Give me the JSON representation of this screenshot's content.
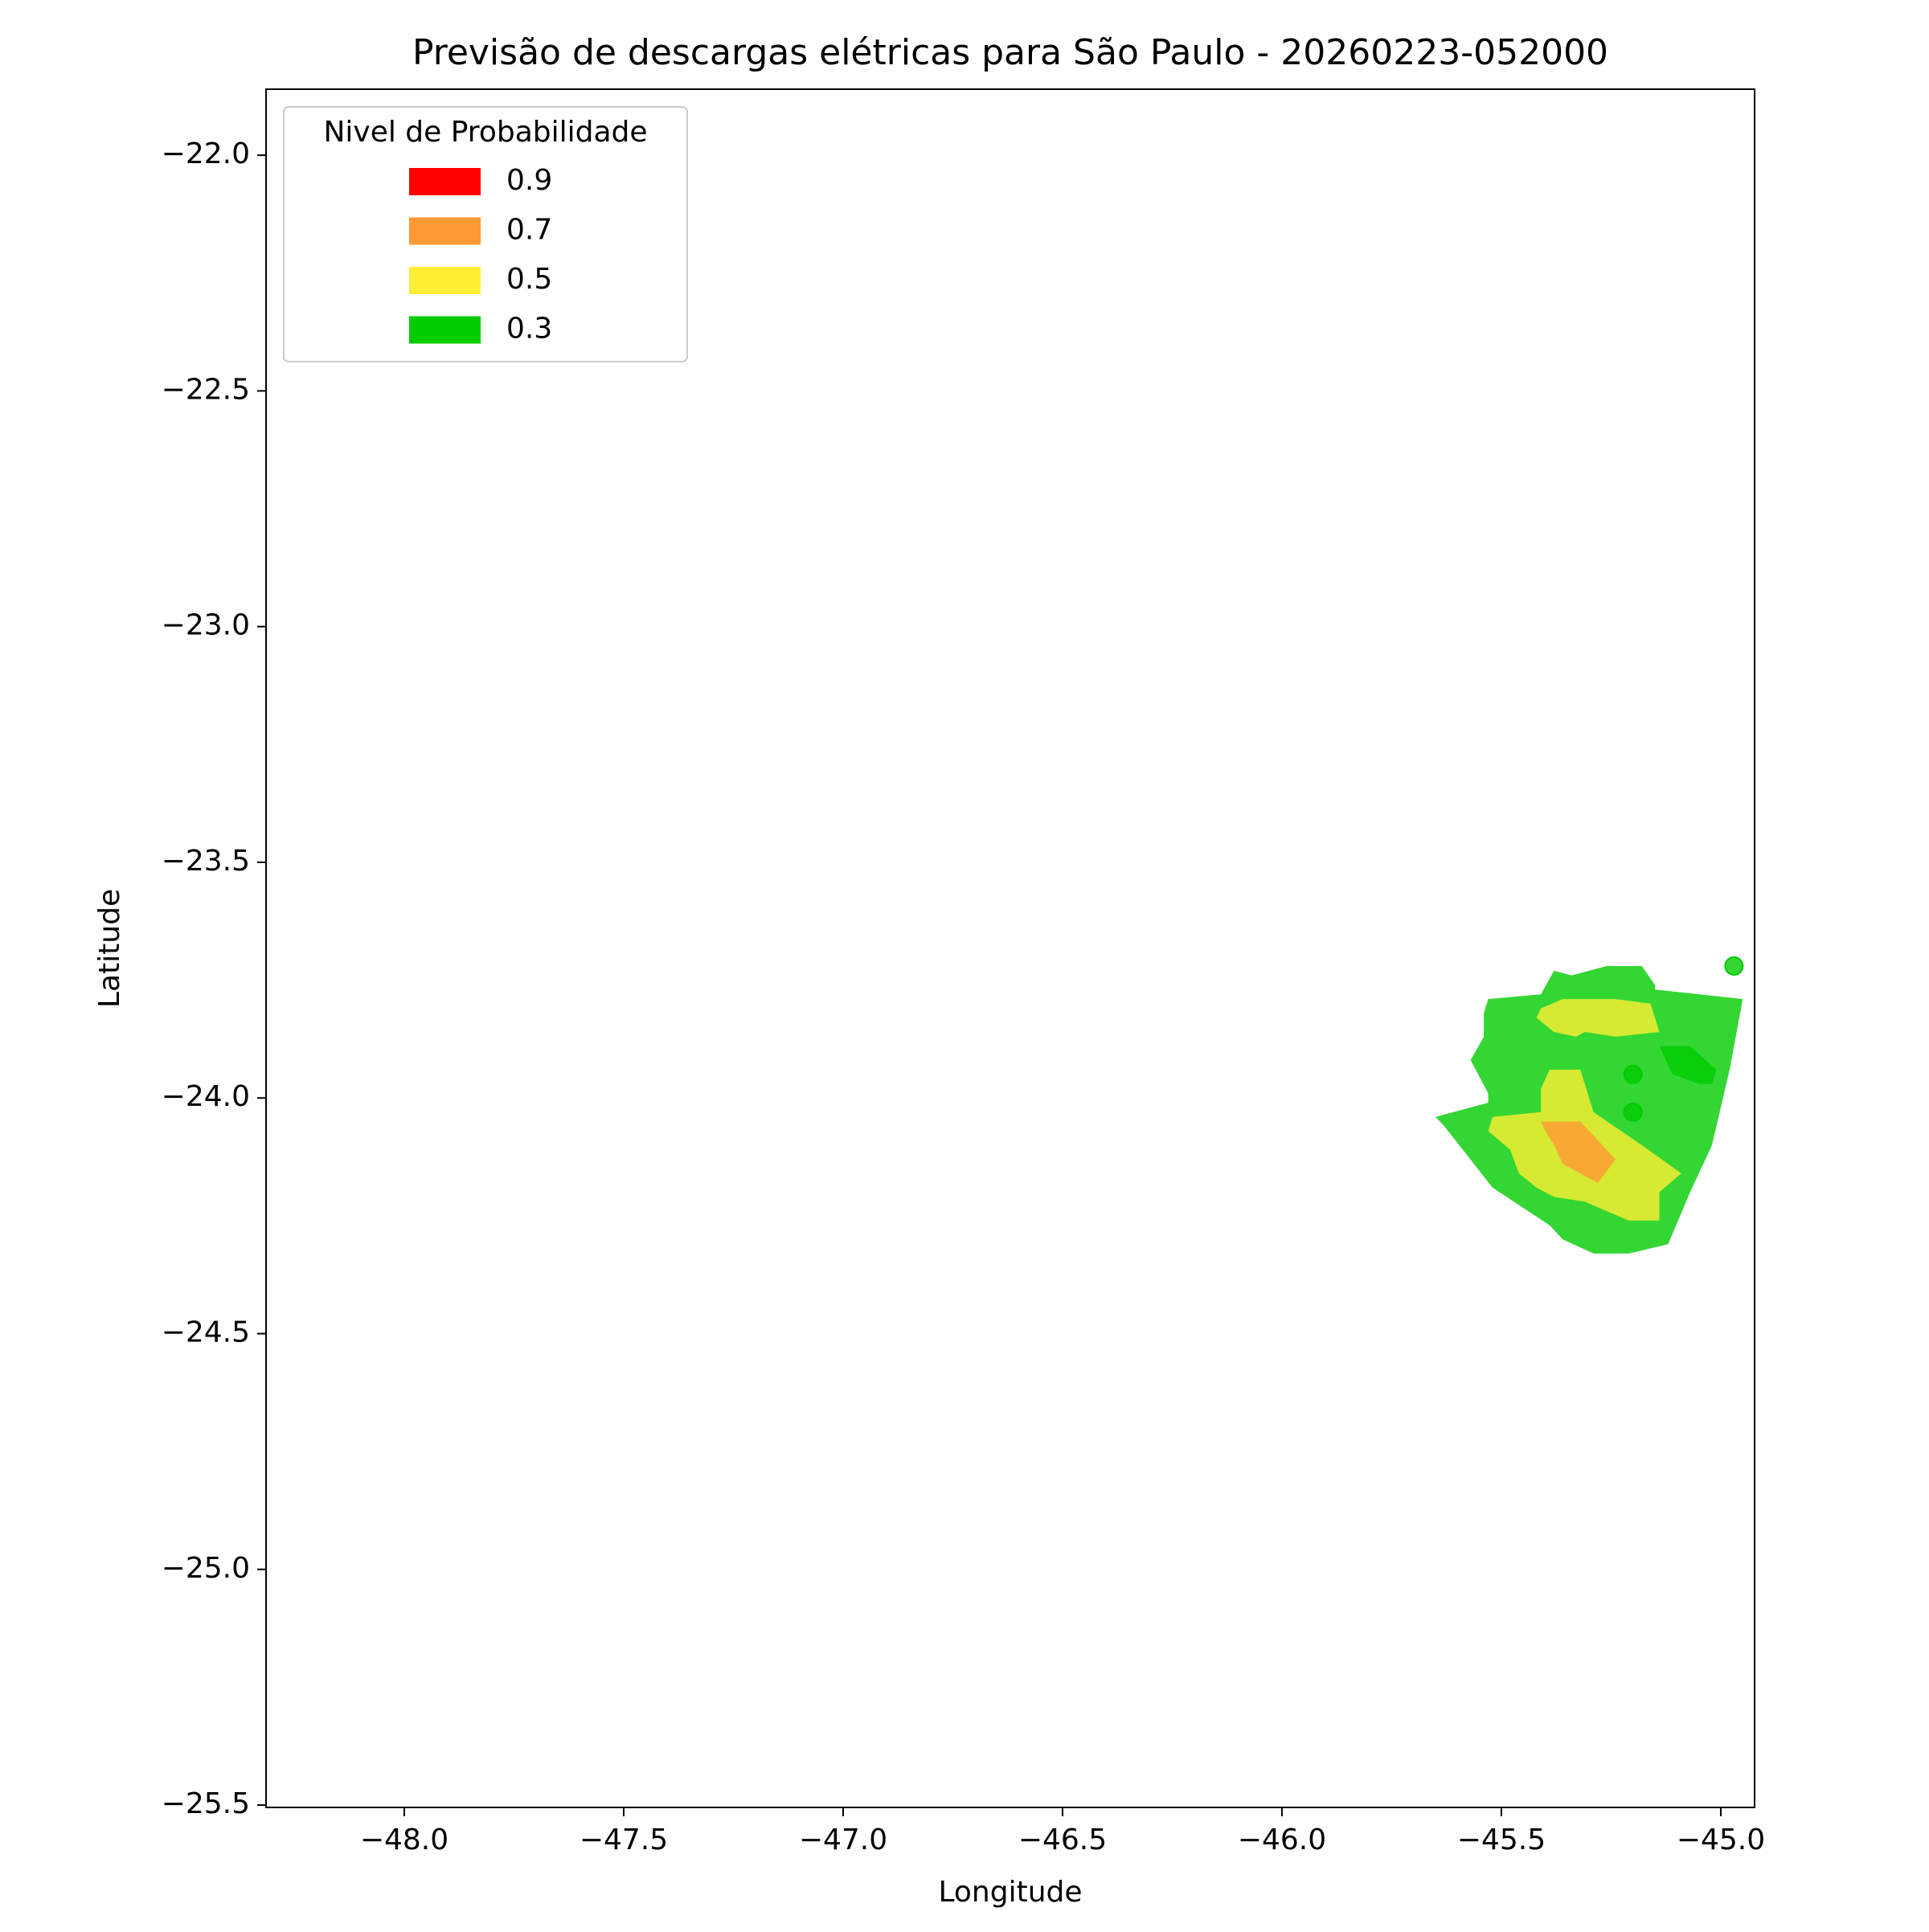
{
  "chart_data": {
    "type": "contour-map",
    "title": "Previsão de descargas elétricas para São Paulo - 20260223-052000",
    "x_label": "Longitude",
    "y_label": "Latitude",
    "xlim": [
      -48.315,
      -44.923
    ],
    "ylim": [
      -25.505,
      -21.86
    ],
    "xticks": [
      {
        "value": -48.0,
        "label": "−48.0"
      },
      {
        "value": -47.5,
        "label": "−47.5"
      },
      {
        "value": -47.0,
        "label": "−47.0"
      },
      {
        "value": -46.5,
        "label": "−46.5"
      },
      {
        "value": -46.0,
        "label": "−46.0"
      },
      {
        "value": -45.5,
        "label": "−45.5"
      },
      {
        "value": -45.0,
        "label": "−45.0"
      }
    ],
    "yticks": [
      {
        "value": -22.0,
        "label": "−22.0"
      },
      {
        "value": -22.5,
        "label": "−22.5"
      },
      {
        "value": -23.0,
        "label": "−23.0"
      },
      {
        "value": -23.5,
        "label": "−23.5"
      },
      {
        "value": -24.0,
        "label": "−24.0"
      },
      {
        "value": -24.5,
        "label": "−24.5"
      },
      {
        "value": -25.0,
        "label": "−25.0"
      },
      {
        "value": -25.5,
        "label": "−25.5"
      }
    ],
    "legend": {
      "title": "Nivel de Probabilidade",
      "loc": "upper left",
      "entries": [
        {
          "label": "0.9",
          "color": "#ff0000"
        },
        {
          "label": "0.7",
          "color": "#ff9933"
        },
        {
          "label": "0.5",
          "color": "#ffee33"
        },
        {
          "label": "0.3",
          "color": "#00cc00"
        }
      ]
    },
    "regions": [
      {
        "color": "#00cc00",
        "lon": [
          -45.53,
          -45.41,
          -45.38,
          -45.34,
          -45.26,
          -45.18,
          -45.15,
          -45.15,
          -44.95,
          -44.98,
          -45.02,
          -45.07,
          -45.12,
          -45.21,
          -45.29,
          -45.36,
          -45.39,
          -45.52,
          -45.63,
          -45.65,
          -45.53,
          -45.53,
          -45.57,
          -45.54,
          -45.54
        ],
        "lat": [
          -23.79,
          -23.78,
          -23.73,
          -23.74,
          -23.72,
          -23.72,
          -23.76,
          -23.77,
          -23.79,
          -23.94,
          -24.1,
          -24.2,
          -24.31,
          -24.33,
          -24.33,
          -24.3,
          -24.27,
          -24.19,
          -24.06,
          -24.04,
          -24.01,
          -23.99,
          -23.92,
          -23.87,
          -23.82
        ]
      },
      {
        "color": "#ffee33",
        "lon": [
          -45.41,
          -45.36,
          -45.32,
          -45.26,
          -45.24,
          -45.16,
          -45.14,
          -45.24,
          -45.31,
          -45.33,
          -45.38,
          -45.42
        ],
        "lat": [
          -23.81,
          -23.79,
          -23.79,
          -23.79,
          -23.79,
          -23.8,
          -23.86,
          -23.87,
          -23.86,
          -23.87,
          -23.86,
          -23.83
        ]
      },
      {
        "color": "#ffee33",
        "lon": [
          -45.39,
          -45.32,
          -45.29,
          -45.18,
          -45.12,
          -45.09,
          -45.14,
          -45.14,
          -45.21,
          -45.26,
          -45.31,
          -45.38,
          -45.42,
          -45.46,
          -45.48,
          -45.53,
          -45.52,
          -45.41,
          -45.41
        ],
        "lat": [
          -23.94,
          -23.94,
          -24.03,
          -24.1,
          -24.14,
          -24.16,
          -24.2,
          -24.26,
          -24.26,
          -24.24,
          -24.22,
          -24.21,
          -24.19,
          -24.16,
          -24.11,
          -24.07,
          -24.04,
          -24.03,
          -23.98
        ]
      },
      {
        "color": "#ff9933",
        "lon": [
          -45.41,
          -45.32,
          -45.24,
          -45.28,
          -45.32,
          -45.36,
          -45.38,
          -45.4
        ],
        "lat": [
          -24.05,
          -24.05,
          -24.13,
          -24.18,
          -24.16,
          -24.14,
          -24.1,
          -24.07
        ]
      },
      {
        "color": "#00cc00",
        "lon": [
          -45.14,
          -45.07,
          -45.01,
          -45.02,
          -45.05,
          -45.11,
          -45.12
        ],
        "lat": [
          -23.89,
          -23.89,
          -23.94,
          -23.97,
          -23.97,
          -23.95,
          -23.93
        ]
      }
    ],
    "points": {
      "color": "#00cc00",
      "lon": [
        -45.2,
        -45.2,
        -44.97
      ],
      "lat": [
        -23.95,
        -24.03,
        -23.72
      ]
    },
    "region_opacity": 0.8
  }
}
